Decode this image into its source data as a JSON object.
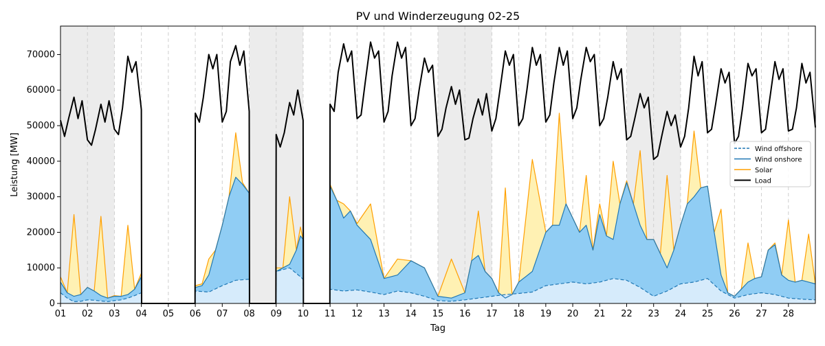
{
  "chart_data": {
    "type": "area",
    "title": "PV und Winderzeugung 02-25",
    "xlabel": "Tag",
    "ylabel": "Leistung [MW]",
    "xlim": [
      1,
      29
    ],
    "ylim": [
      0,
      78000
    ],
    "x_ticks": [
      "01",
      "02",
      "03",
      "04",
      "05",
      "06",
      "07",
      "08",
      "09",
      "10",
      "11",
      "12",
      "13",
      "14",
      "15",
      "16",
      "17",
      "18",
      "19",
      "20",
      "21",
      "22",
      "23",
      "24",
      "25",
      "26",
      "27",
      "28"
    ],
    "y_ticks": [
      0,
      10000,
      20000,
      30000,
      40000,
      50000,
      60000,
      70000
    ],
    "grid": "vertical dashed lines at day boundaries",
    "legend_position": "right",
    "weekend_shading_days": [
      [
        1,
        3
      ],
      [
        8,
        10
      ],
      [
        15,
        17
      ],
      [
        22,
        24
      ]
    ],
    "x_unit": "day of February 2025",
    "series": [
      {
        "name": "Wind offshore",
        "style": "dashed",
        "color": "#1f77b4",
        "fill": "#d6ebfb",
        "x": [
          1.0,
          1.25,
          1.5,
          1.75,
          2.0,
          2.25,
          2.5,
          2.75,
          3.0,
          3.25,
          3.5,
          3.75,
          4.0,
          4.01,
          5.99,
          6.0,
          6.5,
          7.0,
          7.5,
          8.0,
          8.01,
          8.99,
          9.0,
          9.5,
          9.9,
          10.0,
          10.01,
          10.99,
          11.0,
          11.5,
          12.0,
          12.5,
          13.0,
          13.5,
          14.0,
          14.5,
          15.0,
          15.5,
          16.0,
          16.5,
          17.0,
          17.5,
          18.0,
          18.5,
          19.0,
          19.5,
          20.0,
          20.5,
          21.0,
          21.5,
          22.0,
          22.5,
          23.0,
          23.5,
          24.0,
          24.5,
          25.0,
          25.5,
          26.0,
          26.5,
          27.0,
          27.5,
          28.0,
          28.5,
          29.0
        ],
        "y": [
          3000,
          1500,
          500,
          600,
          1000,
          900,
          700,
          500,
          800,
          1000,
          1500,
          2200,
          3000,
          0,
          0,
          3500,
          3200,
          5000,
          6500,
          6800,
          0,
          0,
          9000,
          10000,
          7500,
          6800,
          0,
          0,
          4000,
          3500,
          3800,
          3200,
          2500,
          3500,
          3000,
          2000,
          800,
          600,
          1000,
          1500,
          2000,
          2500,
          2800,
          3200,
          5000,
          5500,
          6000,
          5500,
          6000,
          7000,
          6500,
          4500,
          2000,
          3500,
          5500,
          6000,
          7000,
          3500,
          1500,
          2500,
          3000,
          2500,
          1500,
          1200,
          1000
        ]
      },
      {
        "name": "Wind onshore",
        "style": "solid",
        "color": "#1f77b4",
        "fill": "#90cdf4",
        "x": [
          1.0,
          1.25,
          1.5,
          1.75,
          2.0,
          2.25,
          2.5,
          2.75,
          3.0,
          3.25,
          3.5,
          3.75,
          4.0,
          4.01,
          5.99,
          6.0,
          6.25,
          6.5,
          6.75,
          7.0,
          7.25,
          7.5,
          7.75,
          8.0,
          8.01,
          8.99,
          9.0,
          9.25,
          9.5,
          9.75,
          9.9,
          10.0,
          10.01,
          10.99,
          11.0,
          11.25,
          11.5,
          11.75,
          12.0,
          12.5,
          13.0,
          13.5,
          14.0,
          14.5,
          15.0,
          15.5,
          16.0,
          16.25,
          16.5,
          16.75,
          17.0,
          17.25,
          17.5,
          17.75,
          18.0,
          18.5,
          19.0,
          19.25,
          19.5,
          19.75,
          20.0,
          20.25,
          20.5,
          20.75,
          21.0,
          21.25,
          21.5,
          21.75,
          22.0,
          22.25,
          22.5,
          22.75,
          23.0,
          23.25,
          23.5,
          23.75,
          24.0,
          24.25,
          24.5,
          24.75,
          25.0,
          25.25,
          25.5,
          25.75,
          26.0,
          26.25,
          26.5,
          26.75,
          27.0,
          27.25,
          27.5,
          27.75,
          28.0,
          28.25,
          28.5,
          28.75,
          29.0
        ],
        "y": [
          6000,
          3000,
          2000,
          2500,
          4500,
          3500,
          2200,
          1500,
          2000,
          2000,
          2500,
          4000,
          7500,
          0,
          0,
          4500,
          5000,
          8000,
          15000,
          22000,
          30000,
          35500,
          33500,
          31000,
          0,
          0,
          9000,
          10000,
          11000,
          15000,
          19000,
          18000,
          0,
          0,
          33000,
          29000,
          24000,
          26000,
          22000,
          18000,
          7000,
          8000,
          12000,
          10000,
          2000,
          1500,
          3000,
          12000,
          13500,
          9000,
          7000,
          3000,
          1500,
          2500,
          6000,
          9000,
          20000,
          22000,
          22000,
          28000,
          24000,
          20000,
          22000,
          15000,
          25000,
          19000,
          18000,
          28000,
          34000,
          28000,
          22000,
          18000,
          18000,
          14000,
          10000,
          15000,
          22000,
          28000,
          30000,
          32500,
          33000,
          20000,
          8000,
          3000,
          2000,
          4000,
          6000,
          7000,
          7500,
          15000,
          16500,
          8000,
          6500,
          6000,
          6500,
          6000,
          5500
        ]
      },
      {
        "name": "Solar",
        "style": "solid",
        "color": "#ff9f00",
        "fill": "#fff1b3",
        "x": [
          1.0,
          1.25,
          1.5,
          1.75,
          2.0,
          2.25,
          2.5,
          2.75,
          3.0,
          3.25,
          3.5,
          3.75,
          4.0,
          4.01,
          5.99,
          6.0,
          6.25,
          6.5,
          6.75,
          7.0,
          7.25,
          7.5,
          7.75,
          8.0,
          8.01,
          8.99,
          9.0,
          9.25,
          9.5,
          9.75,
          9.9,
          10.0,
          10.01,
          10.99,
          11.0,
          11.25,
          11.5,
          11.75,
          12.0,
          12.5,
          13.0,
          13.5,
          14.0,
          14.5,
          15.0,
          15.5,
          16.0,
          16.25,
          16.5,
          16.75,
          17.0,
          17.25,
          17.5,
          17.75,
          18.0,
          18.5,
          19.0,
          19.25,
          19.5,
          19.75,
          20.0,
          20.25,
          20.5,
          20.75,
          21.0,
          21.25,
          21.5,
          21.75,
          22.0,
          22.25,
          22.5,
          22.75,
          23.0,
          23.25,
          23.5,
          23.75,
          24.0,
          24.25,
          24.5,
          24.75,
          25.0,
          25.25,
          25.5,
          25.75,
          26.0,
          26.25,
          26.5,
          26.75,
          27.0,
          27.25,
          27.5,
          27.75,
          28.0,
          28.25,
          28.5,
          28.75,
          29.0
        ],
        "y": [
          7500,
          3000,
          25000,
          2500,
          4500,
          3500,
          24500,
          1500,
          2200,
          2000,
          22000,
          4000,
          8500,
          0,
          0,
          5000,
          5500,
          12500,
          15000,
          22000,
          30000,
          48000,
          34000,
          31000,
          0,
          0,
          10000,
          10000,
          30000,
          15000,
          21500,
          18000,
          0,
          0,
          33500,
          29000,
          28000,
          26000,
          22500,
          28000,
          7000,
          12500,
          12000,
          10000,
          2000,
          12500,
          3000,
          12000,
          26000,
          9000,
          7000,
          3000,
          32500,
          2500,
          6000,
          40500,
          20000,
          22000,
          53500,
          28000,
          24000,
          20000,
          36000,
          15000,
          28000,
          19000,
          40000,
          28000,
          34500,
          28000,
          43000,
          18000,
          18000,
          14000,
          36000,
          15000,
          22000,
          28000,
          48500,
          32500,
          33000,
          20000,
          26500,
          3000,
          2000,
          4000,
          17000,
          7000,
          7500,
          15000,
          17000,
          8000,
          23500,
          6000,
          6500,
          19500,
          5500
        ]
      },
      {
        "name": "Load",
        "style": "solid",
        "color": "#000000",
        "x": [
          1.0,
          1.15,
          1.3,
          1.5,
          1.65,
          1.8,
          2.0,
          2.15,
          2.3,
          2.5,
          2.65,
          2.8,
          3.0,
          3.15,
          3.3,
          3.5,
          3.65,
          3.8,
          4.0,
          4.01,
          5.99,
          6.0,
          6.15,
          6.3,
          6.5,
          6.65,
          6.8,
          7.0,
          7.15,
          7.3,
          7.5,
          7.65,
          7.8,
          8.0,
          8.01,
          8.99,
          9.0,
          9.15,
          9.3,
          9.5,
          9.65,
          9.8,
          10.0,
          10.01,
          10.99,
          11.0,
          11.15,
          11.3,
          11.5,
          11.65,
          11.8,
          12.0,
          12.15,
          12.3,
          12.5,
          12.65,
          12.8,
          13.0,
          13.15,
          13.3,
          13.5,
          13.65,
          13.8,
          14.0,
          14.15,
          14.3,
          14.5,
          14.65,
          14.8,
          15.0,
          15.15,
          15.3,
          15.5,
          15.65,
          15.8,
          16.0,
          16.15,
          16.3,
          16.5,
          16.65,
          16.8,
          17.0,
          17.15,
          17.3,
          17.5,
          17.65,
          17.8,
          18.0,
          18.15,
          18.3,
          18.5,
          18.65,
          18.8,
          19.0,
          19.15,
          19.3,
          19.5,
          19.65,
          19.8,
          20.0,
          20.15,
          20.3,
          20.5,
          20.65,
          20.8,
          21.0,
          21.15,
          21.3,
          21.5,
          21.65,
          21.8,
          22.0,
          22.15,
          22.3,
          22.5,
          22.65,
          22.8,
          23.0,
          23.15,
          23.3,
          23.5,
          23.65,
          23.8,
          24.0,
          24.15,
          24.3,
          24.5,
          24.65,
          24.8,
          25.0,
          25.15,
          25.3,
          25.5,
          25.65,
          25.8,
          26.0,
          26.15,
          26.3,
          26.5,
          26.65,
          26.8,
          27.0,
          27.15,
          27.3,
          27.5,
          27.65,
          27.8,
          28.0,
          28.15,
          28.3,
          28.5,
          28.65,
          28.8,
          29.0
        ],
        "y": [
          51500,
          47000,
          52000,
          58000,
          52000,
          57000,
          46000,
          44500,
          49000,
          56000,
          51000,
          57000,
          49000,
          47500,
          55000,
          69500,
          65000,
          68000,
          54500,
          0,
          0,
          53500,
          51000,
          58000,
          70000,
          66000,
          70000,
          51000,
          54000,
          68000,
          72500,
          67000,
          71000,
          54000,
          0,
          0,
          47500,
          44000,
          48000,
          56500,
          53000,
          60000,
          51500,
          0,
          0,
          56000,
          54000,
          65000,
          73000,
          68000,
          71000,
          52000,
          53000,
          62000,
          73500,
          69000,
          71000,
          51000,
          54000,
          64000,
          73500,
          69000,
          72000,
          50000,
          52000,
          60000,
          69000,
          65000,
          67000,
          47000,
          49000,
          55000,
          61000,
          56000,
          60000,
          46000,
          46500,
          52000,
          57500,
          53000,
          59000,
          48500,
          52000,
          60000,
          71000,
          67000,
          70000,
          50000,
          52000,
          60000,
          72000,
          67000,
          70000,
          51000,
          53000,
          62000,
          72000,
          67000,
          71000,
          52000,
          55000,
          63000,
          72000,
          68000,
          70000,
          50000,
          52000,
          58000,
          68000,
          63000,
          66000,
          46000,
          47000,
          52000,
          59000,
          55000,
          58000,
          40500,
          41500,
          47000,
          54000,
          50000,
          53000,
          44000,
          47000,
          55000,
          69500,
          64000,
          68000,
          48000,
          49000,
          56000,
          66000,
          62000,
          65000,
          45000,
          47000,
          55000,
          67500,
          64000,
          66000,
          48000,
          49000,
          57000,
          68000,
          63000,
          66000,
          48500,
          49000,
          55000,
          67500,
          62000,
          65000,
          49500
        ]
      }
    ]
  }
}
